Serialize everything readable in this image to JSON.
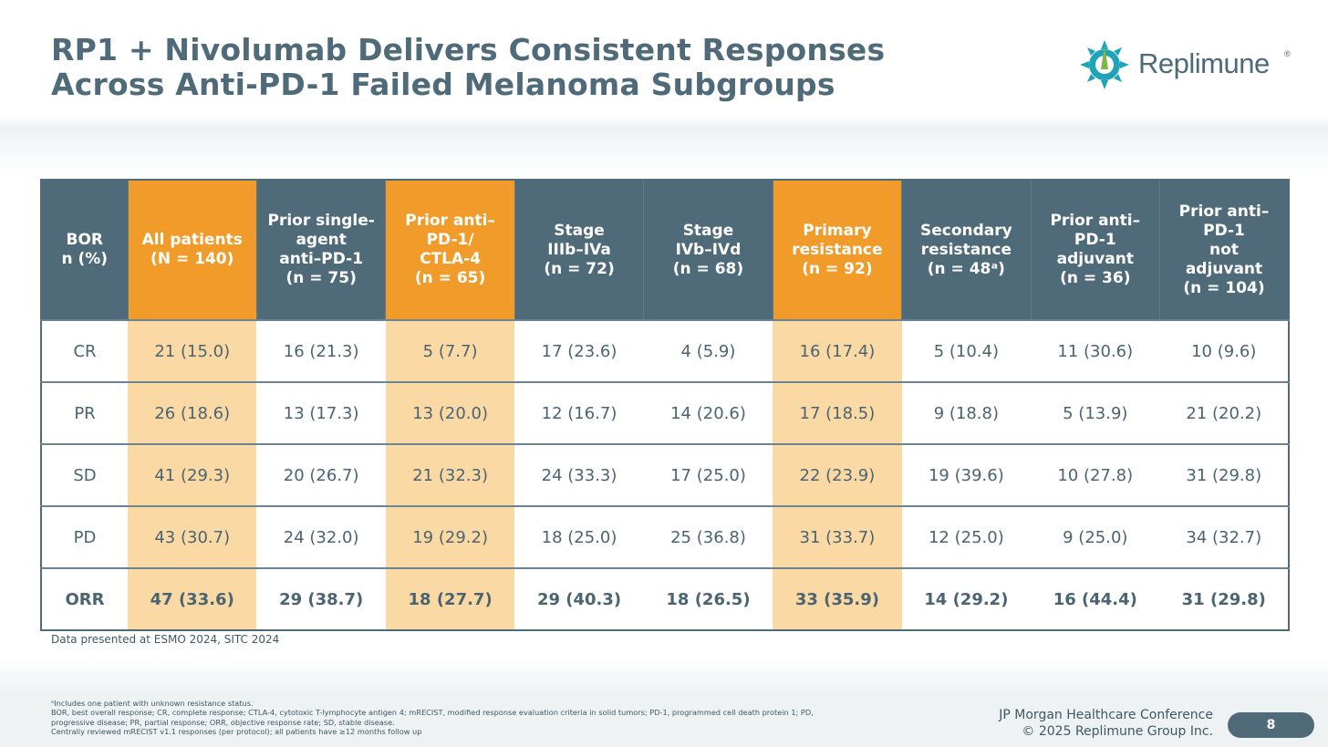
{
  "title": {
    "line1": "RP1 + Nivolumab Delivers Consistent Responses",
    "line2": "Across Anti-PD-1 Failed Melanoma Subgroups"
  },
  "logo": {
    "text": "Replimune",
    "reg_mark": "®",
    "icon": "replimune-sun-icon"
  },
  "colors": {
    "header": "#4f6b79",
    "highlight_header": "#f19c2a",
    "highlight_cell": "#fbd9a5"
  },
  "table": {
    "headers": [
      {
        "line1": "BOR",
        "line2": "n (%)"
      },
      {
        "line1": "All patients",
        "line2": "(N = 140)"
      },
      {
        "line1": "Prior single-",
        "line2": "agent",
        "line3": "anti–PD-1",
        "line4": "(n = 75)"
      },
      {
        "line1": "Prior anti–",
        "line2": "PD-1/",
        "line3": "CTLA-4",
        "line4": "(n = 65)"
      },
      {
        "line1": "Stage",
        "line2": "IIIb–IVa",
        "line3": "(n = 72)"
      },
      {
        "line1": "Stage",
        "line2": "IVb–IVd",
        "line3": "(n = 68)"
      },
      {
        "line1": "Primary",
        "line2": "resistance",
        "line3": "(n = 92)"
      },
      {
        "line1": "Secondary",
        "line2": "resistance",
        "line3": "(n = 48ᵃ)"
      },
      {
        "line1": "Prior anti–",
        "line2": "PD-1",
        "line3": "adjuvant",
        "line4": "(n = 36)"
      },
      {
        "line1": "Prior anti–",
        "line2": "PD-1",
        "line3": "not",
        "line4": "adjuvant",
        "line5": "(n = 104)"
      }
    ],
    "rows": [
      {
        "label": "CR",
        "cells": [
          "21 (15.0)",
          "16 (21.3)",
          "5 (7.7)",
          "17 (23.6)",
          "4 (5.9)",
          "16 (17.4)",
          "5 (10.4)",
          "11 (30.6)",
          "10 (9.6)"
        ]
      },
      {
        "label": "PR",
        "cells": [
          "26 (18.6)",
          "13 (17.3)",
          "13 (20.0)",
          "12 (16.7)",
          "14 (20.6)",
          "17 (18.5)",
          "9 (18.8)",
          "5 (13.9)",
          "21 (20.2)"
        ]
      },
      {
        "label": "SD",
        "cells": [
          "41 (29.3)",
          "20 (26.7)",
          "21 (32.3)",
          "24 (33.3)",
          "17 (25.0)",
          "22 (23.9)",
          "19 (39.6)",
          "10 (27.8)",
          "31 (29.8)"
        ]
      },
      {
        "label": "PD",
        "cells": [
          "43 (30.7)",
          "24 (32.0)",
          "19 (29.2)",
          "18 (25.0)",
          "25 (36.8)",
          "31 (33.7)",
          "12 (25.0)",
          "9 (25.0)",
          "34 (32.7)"
        ]
      },
      {
        "label": "ORR",
        "cells": [
          "47 (33.6)",
          "29 (38.7)",
          "18 (27.7)",
          "29 (40.3)",
          "18 (26.5)",
          "33 (35.9)",
          "14 (29.2)",
          "16 (44.4)",
          "31 (29.8)"
        ]
      }
    ]
  },
  "source": "Data presented at ESMO 2024, SITC 2024",
  "footnotes": {
    "line1": "ᵃIncludes one patient with unknown resistance status.",
    "line2": "BOR, best overall response; CR, complete response; CTLA-4, cytotoxic T-lymphocyte antigen 4; mRECIST, modified response evaluation criteria in solid tumors; PD-1, programmed cell death protein 1; PD,",
    "line3": "progressive disease; PR, partial response; ORR, objective response rate; SD, stable disease.",
    "line4": "Centrally reviewed mRECIST v1.1 responses (per protocol); all patients have ≥12 months follow up"
  },
  "footer": {
    "conference": "JP Morgan Healthcare Conference",
    "copyright": "© 2025 Replimune Group Inc.",
    "page_number": "8"
  }
}
